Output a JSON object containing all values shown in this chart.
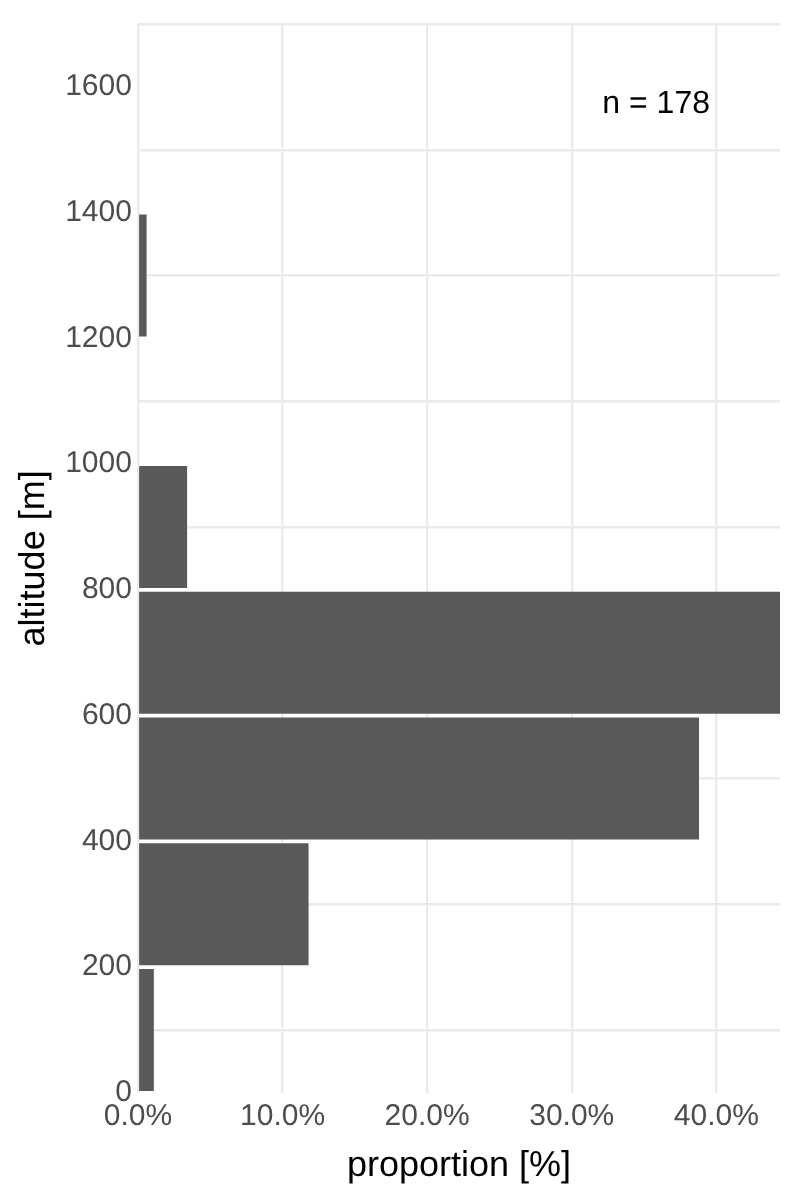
{
  "chart_data": {
    "type": "histogram",
    "orientation": "horizontal",
    "xlabel": "proportion [%]",
    "ylabel": "altitude [m]",
    "bins": [
      0,
      200,
      400,
      600,
      800,
      1000,
      1200,
      1400
    ],
    "values": [
      1.1,
      11.8,
      38.8,
      44.4,
      3.4,
      0,
      0.6
    ],
    "color": "#595959",
    "xlim": [
      0,
      44.4
    ],
    "xticks": [
      {
        "value": 0,
        "label": "0.0%"
      },
      {
        "value": 10,
        "label": "10.0%"
      },
      {
        "value": 20,
        "label": "20.0%"
      },
      {
        "value": 30,
        "label": "30.0%"
      },
      {
        "value": 40,
        "label": "40.0%"
      }
    ],
    "ylim": [
      0,
      1700
    ],
    "yticks": [
      0,
      200,
      400,
      600,
      800,
      1000,
      1200,
      1400,
      1600
    ],
    "grid": true,
    "annotations": [
      "n = 178"
    ]
  }
}
